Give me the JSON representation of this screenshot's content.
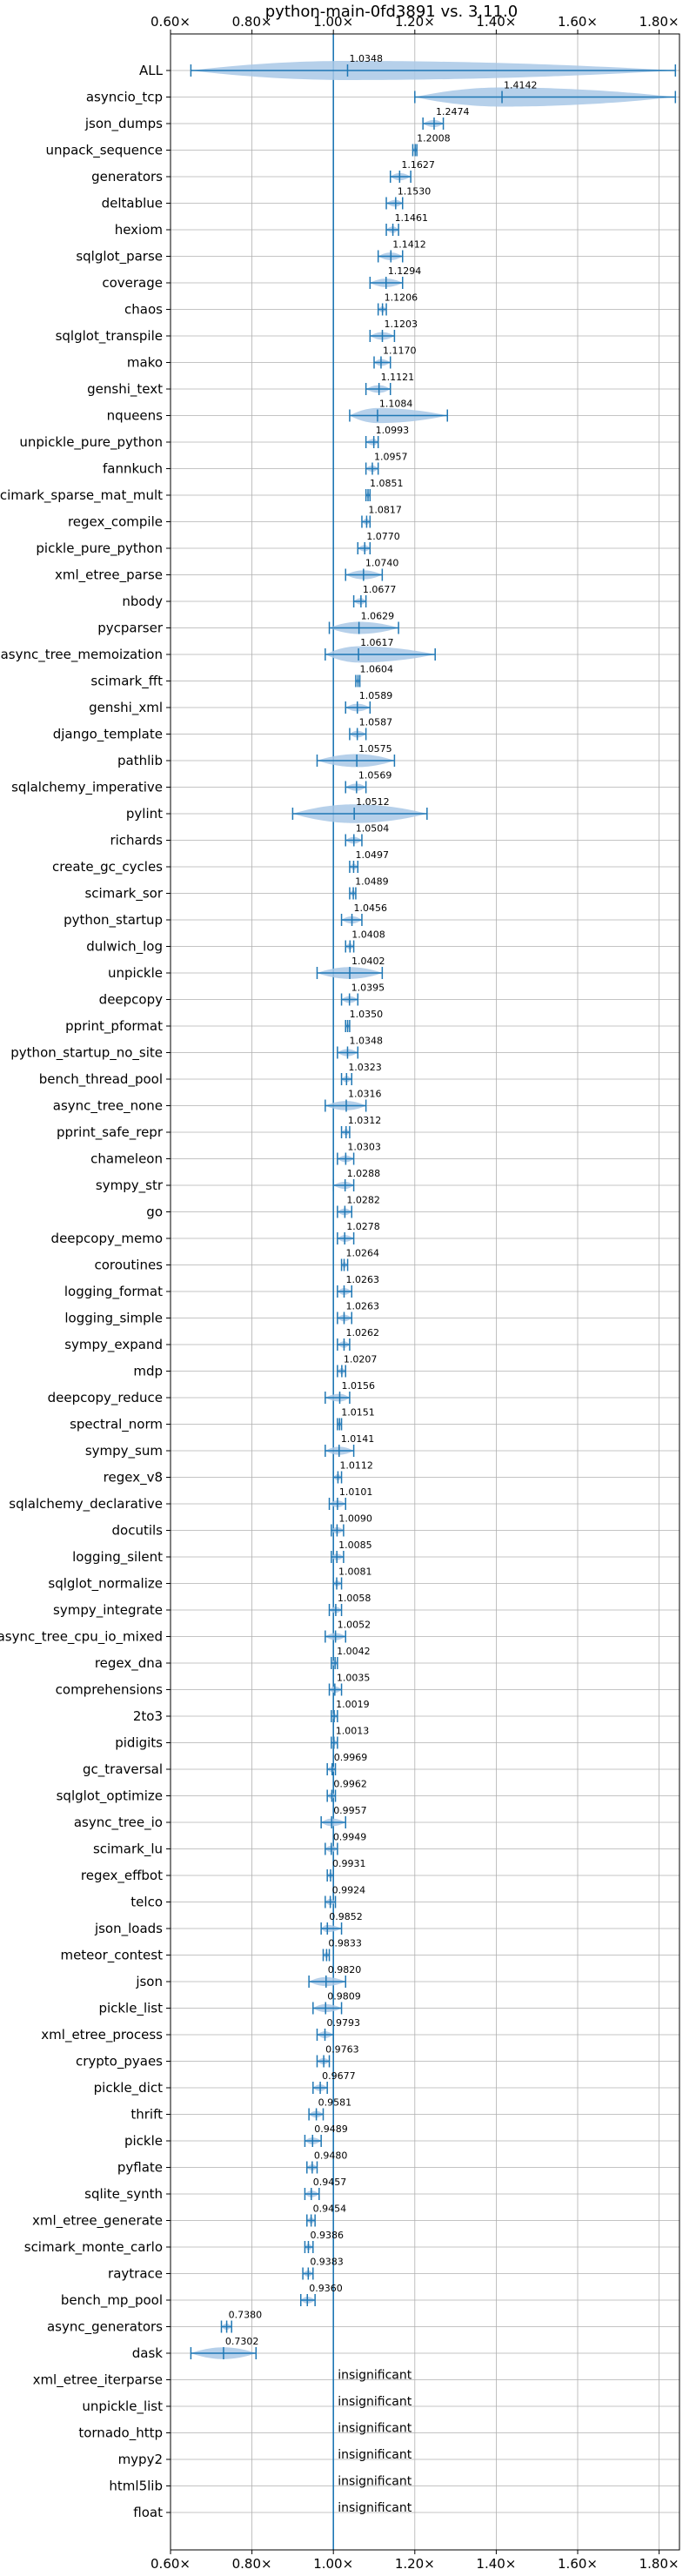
{
  "chart_data": {
    "type": "violin",
    "title": "python-main-0fd3891 vs. 3.11.0",
    "xlabel": "",
    "ylabel": "",
    "xlim": [
      0.6,
      1.85
    ],
    "xticks": [
      0.6,
      0.8,
      1.0,
      1.2,
      1.4,
      1.6,
      1.8
    ],
    "xtick_labels": [
      "0.60×",
      "0.80×",
      "1.00×",
      "1.20×",
      "1.40×",
      "1.60×",
      "1.80×"
    ],
    "grid": true,
    "reference_line": 1.0,
    "colors": {
      "violin": "#a9c8e6",
      "line": "#1f77b4",
      "grid": "#b0b0b0"
    },
    "insignificant_text": "insignificant",
    "benchmarks": [
      {
        "name": "ALL",
        "value": 1.0348,
        "label": "1.0348",
        "min": 0.65,
        "max": 1.84
      },
      {
        "name": "asyncio_tcp",
        "value": 1.4142,
        "label": "1.4142",
        "min": 1.2,
        "max": 1.84
      },
      {
        "name": "json_dumps",
        "value": 1.2474,
        "label": "1.2474",
        "min": 1.22,
        "max": 1.27
      },
      {
        "name": "unpack_sequence",
        "value": 1.2008,
        "label": "1.2008",
        "min": 1.195,
        "max": 1.205
      },
      {
        "name": "generators",
        "value": 1.1627,
        "label": "1.1627",
        "min": 1.14,
        "max": 1.19
      },
      {
        "name": "deltablue",
        "value": 1.153,
        "label": "1.1530",
        "min": 1.13,
        "max": 1.17
      },
      {
        "name": "hexiom",
        "value": 1.1461,
        "label": "1.1461",
        "min": 1.13,
        "max": 1.16
      },
      {
        "name": "sqlglot_parse",
        "value": 1.1412,
        "label": "1.1412",
        "min": 1.11,
        "max": 1.17
      },
      {
        "name": "coverage",
        "value": 1.1294,
        "label": "1.1294",
        "min": 1.09,
        "max": 1.17
      },
      {
        "name": "chaos",
        "value": 1.1206,
        "label": "1.1206",
        "min": 1.11,
        "max": 1.13
      },
      {
        "name": "sqlglot_transpile",
        "value": 1.1203,
        "label": "1.1203",
        "min": 1.09,
        "max": 1.15
      },
      {
        "name": "mako",
        "value": 1.117,
        "label": "1.1170",
        "min": 1.1,
        "max": 1.14
      },
      {
        "name": "genshi_text",
        "value": 1.1121,
        "label": "1.1121",
        "min": 1.08,
        "max": 1.14
      },
      {
        "name": "nqueens",
        "value": 1.1084,
        "label": "1.1084",
        "min": 1.04,
        "max": 1.28
      },
      {
        "name": "unpickle_pure_python",
        "value": 1.0993,
        "label": "1.0993",
        "min": 1.08,
        "max": 1.11
      },
      {
        "name": "fannkuch",
        "value": 1.0957,
        "label": "1.0957",
        "min": 1.08,
        "max": 1.11
      },
      {
        "name": "scimark_sparse_mat_mult",
        "value": 1.0851,
        "label": "1.0851",
        "min": 1.08,
        "max": 1.09
      },
      {
        "name": "regex_compile",
        "value": 1.0817,
        "label": "1.0817",
        "min": 1.07,
        "max": 1.09
      },
      {
        "name": "pickle_pure_python",
        "value": 1.077,
        "label": "1.0770",
        "min": 1.06,
        "max": 1.09
      },
      {
        "name": "xml_etree_parse",
        "value": 1.074,
        "label": "1.0740",
        "min": 1.03,
        "max": 1.12
      },
      {
        "name": "nbody",
        "value": 1.0677,
        "label": "1.0677",
        "min": 1.05,
        "max": 1.08
      },
      {
        "name": "pycparser",
        "value": 1.0629,
        "label": "1.0629",
        "min": 0.99,
        "max": 1.16
      },
      {
        "name": "async_tree_memoization",
        "value": 1.0617,
        "label": "1.0617",
        "min": 0.98,
        "max": 1.25
      },
      {
        "name": "scimark_fft",
        "value": 1.0604,
        "label": "1.0604",
        "min": 1.055,
        "max": 1.065
      },
      {
        "name": "genshi_xml",
        "value": 1.0589,
        "label": "1.0589",
        "min": 1.03,
        "max": 1.09
      },
      {
        "name": "django_template",
        "value": 1.0587,
        "label": "1.0587",
        "min": 1.04,
        "max": 1.08
      },
      {
        "name": "pathlib",
        "value": 1.0575,
        "label": "1.0575",
        "min": 0.96,
        "max": 1.15
      },
      {
        "name": "sqlalchemy_imperative",
        "value": 1.0569,
        "label": "1.0569",
        "min": 1.03,
        "max": 1.08
      },
      {
        "name": "pylint",
        "value": 1.0512,
        "label": "1.0512",
        "min": 0.9,
        "max": 1.23
      },
      {
        "name": "richards",
        "value": 1.0504,
        "label": "1.0504",
        "min": 1.03,
        "max": 1.07
      },
      {
        "name": "create_gc_cycles",
        "value": 1.0497,
        "label": "1.0497",
        "min": 1.04,
        "max": 1.06
      },
      {
        "name": "scimark_sor",
        "value": 1.0489,
        "label": "1.0489",
        "min": 1.04,
        "max": 1.055
      },
      {
        "name": "python_startup",
        "value": 1.0456,
        "label": "1.0456",
        "min": 1.02,
        "max": 1.07
      },
      {
        "name": "dulwich_log",
        "value": 1.0408,
        "label": "1.0408",
        "min": 1.03,
        "max": 1.05
      },
      {
        "name": "unpickle",
        "value": 1.0402,
        "label": "1.0402",
        "min": 0.96,
        "max": 1.12
      },
      {
        "name": "deepcopy",
        "value": 1.0395,
        "label": "1.0395",
        "min": 1.02,
        "max": 1.06
      },
      {
        "name": "pprint_pformat",
        "value": 1.035,
        "label": "1.0350",
        "min": 1.03,
        "max": 1.04
      },
      {
        "name": "python_startup_no_site",
        "value": 1.0348,
        "label": "1.0348",
        "min": 1.01,
        "max": 1.06
      },
      {
        "name": "bench_thread_pool",
        "value": 1.0323,
        "label": "1.0323",
        "min": 1.02,
        "max": 1.045
      },
      {
        "name": "async_tree_none",
        "value": 1.0316,
        "label": "1.0316",
        "min": 0.98,
        "max": 1.08
      },
      {
        "name": "pprint_safe_repr",
        "value": 1.0312,
        "label": "1.0312",
        "min": 1.02,
        "max": 1.04
      },
      {
        "name": "chameleon",
        "value": 1.0303,
        "label": "1.0303",
        "min": 1.01,
        "max": 1.05
      },
      {
        "name": "sympy_str",
        "value": 1.0288,
        "label": "1.0288",
        "min": 1.0,
        "max": 1.05
      },
      {
        "name": "go",
        "value": 1.0282,
        "label": "1.0282",
        "min": 1.01,
        "max": 1.045
      },
      {
        "name": "deepcopy_memo",
        "value": 1.0278,
        "label": "1.0278",
        "min": 1.01,
        "max": 1.05
      },
      {
        "name": "coroutines",
        "value": 1.0264,
        "label": "1.0264",
        "min": 1.02,
        "max": 1.035
      },
      {
        "name": "logging_format",
        "value": 1.0263,
        "label": "1.0263",
        "min": 1.01,
        "max": 1.045
      },
      {
        "name": "logging_simple",
        "value": 1.0263,
        "label": "1.0263",
        "min": 1.01,
        "max": 1.045
      },
      {
        "name": "sympy_expand",
        "value": 1.0262,
        "label": "1.0262",
        "min": 1.01,
        "max": 1.04
      },
      {
        "name": "mdp",
        "value": 1.0207,
        "label": "1.0207",
        "min": 1.01,
        "max": 1.03
      },
      {
        "name": "deepcopy_reduce",
        "value": 1.0156,
        "label": "1.0156",
        "min": 0.98,
        "max": 1.04
      },
      {
        "name": "spectral_norm",
        "value": 1.0151,
        "label": "1.0151",
        "min": 1.01,
        "max": 1.02
      },
      {
        "name": "sympy_sum",
        "value": 1.0141,
        "label": "1.0141",
        "min": 0.98,
        "max": 1.05
      },
      {
        "name": "regex_v8",
        "value": 1.0112,
        "label": "1.0112",
        "min": 1.0,
        "max": 1.02
      },
      {
        "name": "sqlalchemy_declarative",
        "value": 1.0101,
        "label": "1.0101",
        "min": 0.99,
        "max": 1.03
      },
      {
        "name": "docutils",
        "value": 1.009,
        "label": "1.0090",
        "min": 0.995,
        "max": 1.025
      },
      {
        "name": "logging_silent",
        "value": 1.0085,
        "label": "1.0085",
        "min": 0.995,
        "max": 1.025
      },
      {
        "name": "sqlglot_normalize",
        "value": 1.0081,
        "label": "1.0081",
        "min": 1.0,
        "max": 1.02
      },
      {
        "name": "sympy_integrate",
        "value": 1.0058,
        "label": "1.0058",
        "min": 0.99,
        "max": 1.02
      },
      {
        "name": "async_tree_cpu_io_mixed",
        "value": 1.0052,
        "label": "1.0052",
        "min": 0.98,
        "max": 1.03
      },
      {
        "name": "regex_dna",
        "value": 1.0042,
        "label": "1.0042",
        "min": 0.995,
        "max": 1.01
      },
      {
        "name": "comprehensions",
        "value": 1.0035,
        "label": "1.0035",
        "min": 0.99,
        "max": 1.02
      },
      {
        "name": "2to3",
        "value": 1.0019,
        "label": "1.0019",
        "min": 0.995,
        "max": 1.01
      },
      {
        "name": "pidigits",
        "value": 1.0013,
        "label": "1.0013",
        "min": 0.995,
        "max": 1.01
      },
      {
        "name": "gc_traversal",
        "value": 0.9969,
        "label": "0.9969",
        "min": 0.985,
        "max": 1.005
      },
      {
        "name": "sqlglot_optimize",
        "value": 0.9962,
        "label": "0.9962",
        "min": 0.985,
        "max": 1.005
      },
      {
        "name": "async_tree_io",
        "value": 0.9957,
        "label": "0.9957",
        "min": 0.97,
        "max": 1.03
      },
      {
        "name": "scimark_lu",
        "value": 0.9949,
        "label": "0.9949",
        "min": 0.98,
        "max": 1.01
      },
      {
        "name": "regex_effbot",
        "value": 0.9931,
        "label": "0.9931",
        "min": 0.985,
        "max": 1.0
      },
      {
        "name": "telco",
        "value": 0.9924,
        "label": "0.9924",
        "min": 0.98,
        "max": 1.005
      },
      {
        "name": "json_loads",
        "value": 0.9852,
        "label": "0.9852",
        "min": 0.97,
        "max": 1.02
      },
      {
        "name": "meteor_contest",
        "value": 0.9833,
        "label": "0.9833",
        "min": 0.975,
        "max": 0.99
      },
      {
        "name": "json",
        "value": 0.982,
        "label": "0.9820",
        "min": 0.94,
        "max": 1.03
      },
      {
        "name": "pickle_list",
        "value": 0.9809,
        "label": "0.9809",
        "min": 0.95,
        "max": 1.02
      },
      {
        "name": "xml_etree_process",
        "value": 0.9793,
        "label": "0.9793",
        "min": 0.96,
        "max": 1.0
      },
      {
        "name": "crypto_pyaes",
        "value": 0.9763,
        "label": "0.9763",
        "min": 0.96,
        "max": 0.99
      },
      {
        "name": "pickle_dict",
        "value": 0.9677,
        "label": "0.9677",
        "min": 0.95,
        "max": 0.985
      },
      {
        "name": "thrift",
        "value": 0.9581,
        "label": "0.9581",
        "min": 0.94,
        "max": 0.975
      },
      {
        "name": "pickle",
        "value": 0.9489,
        "label": "0.9489",
        "min": 0.93,
        "max": 0.97
      },
      {
        "name": "pyflate",
        "value": 0.948,
        "label": "0.9480",
        "min": 0.935,
        "max": 0.96
      },
      {
        "name": "sqlite_synth",
        "value": 0.9457,
        "label": "0.9457",
        "min": 0.93,
        "max": 0.965
      },
      {
        "name": "xml_etree_generate",
        "value": 0.9454,
        "label": "0.9454",
        "min": 0.935,
        "max": 0.955
      },
      {
        "name": "scimark_monte_carlo",
        "value": 0.9386,
        "label": "0.9386",
        "min": 0.93,
        "max": 0.95
      },
      {
        "name": "raytrace",
        "value": 0.9383,
        "label": "0.9383",
        "min": 0.925,
        "max": 0.95
      },
      {
        "name": "bench_mp_pool",
        "value": 0.936,
        "label": "0.9360",
        "min": 0.92,
        "max": 0.955
      },
      {
        "name": "async_generators",
        "value": 0.738,
        "label": "0.7380",
        "min": 0.725,
        "max": 0.75
      },
      {
        "name": "dask",
        "value": 0.7302,
        "label": "0.7302",
        "min": 0.65,
        "max": 0.81
      },
      {
        "name": "xml_etree_iterparse",
        "value": null,
        "label": "insignificant"
      },
      {
        "name": "unpickle_list",
        "value": null,
        "label": "insignificant"
      },
      {
        "name": "tornado_http",
        "value": null,
        "label": "insignificant"
      },
      {
        "name": "mypy2",
        "value": null,
        "label": "insignificant"
      },
      {
        "name": "html5lib",
        "value": null,
        "label": "insignificant"
      },
      {
        "name": "float",
        "value": null,
        "label": "insignificant"
      }
    ]
  }
}
